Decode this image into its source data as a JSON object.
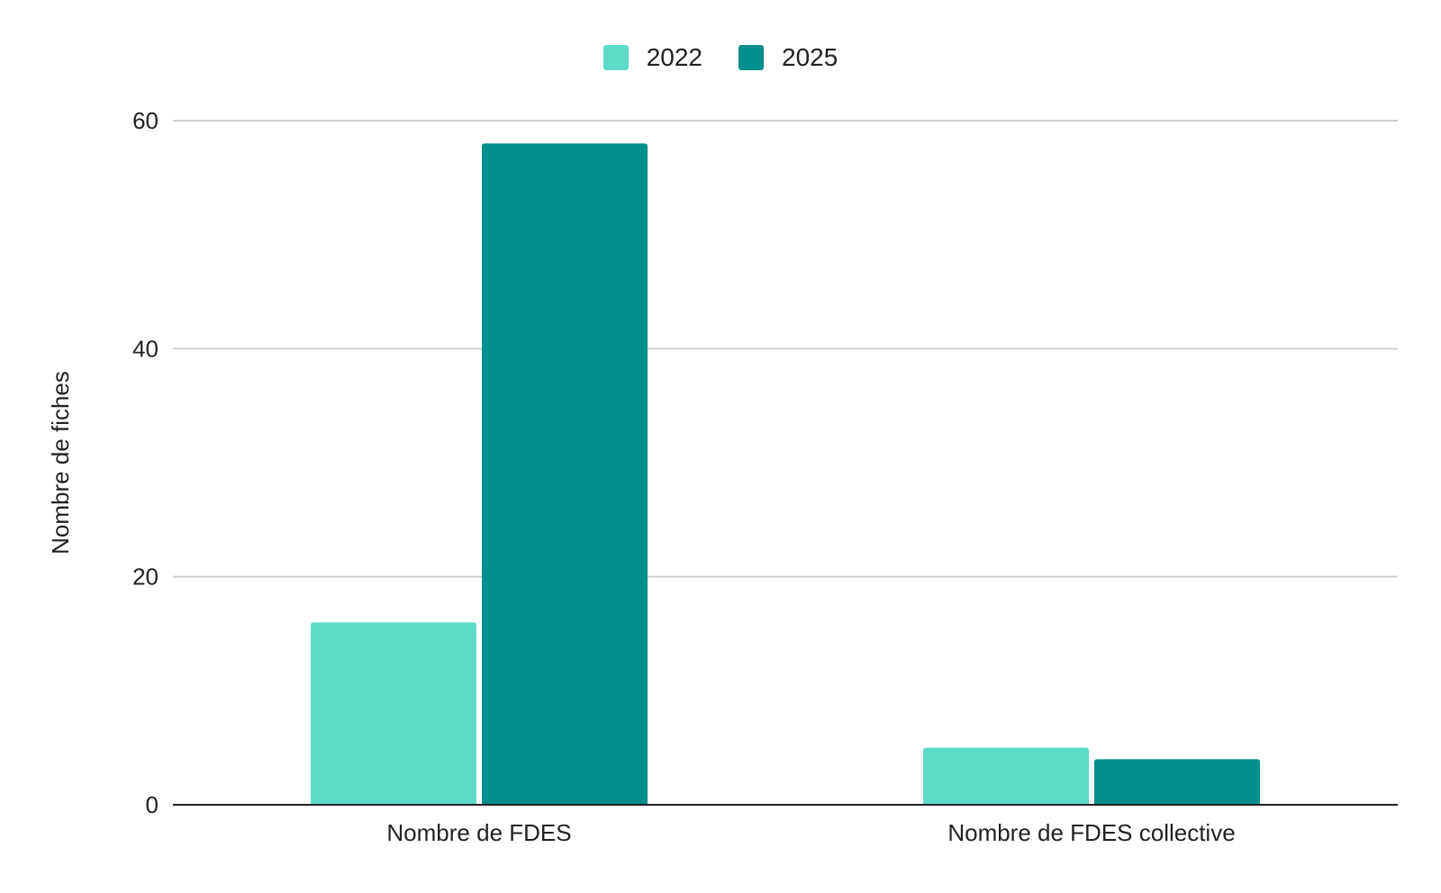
{
  "chart_data": {
    "type": "bar",
    "categories": [
      "Nombre de FDES",
      "Nombre de FDES collective"
    ],
    "series": [
      {
        "name": "2022",
        "color": "#5cdbc8",
        "values": [
          16,
          5
        ]
      },
      {
        "name": "2025",
        "color": "#048e8c",
        "values": [
          58,
          4
        ]
      }
    ],
    "xlabel": "",
    "ylabel": "Nombre de fiches",
    "ylim": [
      0,
      60
    ],
    "yticks": [
      0,
      20,
      40,
      60
    ],
    "grid": true,
    "legend_position": "top-center"
  }
}
